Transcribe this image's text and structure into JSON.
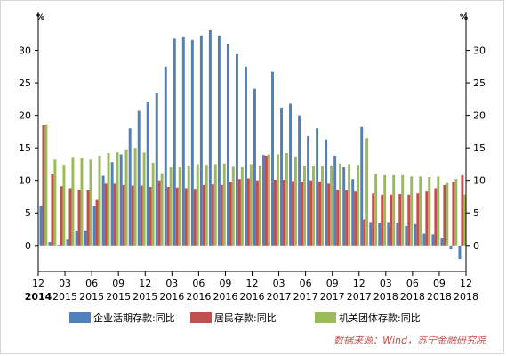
{
  "chart_data": {
    "type": "bar",
    "ylim": [
      -4,
      35
    ],
    "yticks": [
      0,
      5,
      10,
      15,
      20,
      25,
      30
    ],
    "ylabel_left": "%",
    "ylabel_right": "%",
    "grid": false,
    "legend_position": "bottom",
    "x_tick_labels": [
      {
        "month": "12",
        "year": "2014"
      },
      {
        "month": "03",
        "year": "2015"
      },
      {
        "month": "06",
        "year": "2015"
      },
      {
        "month": "09",
        "year": "2015"
      },
      {
        "month": "12",
        "year": "2015"
      },
      {
        "month": "03",
        "year": "2016"
      },
      {
        "month": "06",
        "year": "2016"
      },
      {
        "month": "09",
        "year": "2016"
      },
      {
        "month": "12",
        "year": "2016"
      },
      {
        "month": "03",
        "year": "2017"
      },
      {
        "month": "06",
        "year": "2017"
      },
      {
        "month": "09",
        "year": "2017"
      },
      {
        "month": "12",
        "year": "2017"
      },
      {
        "month": "03",
        "year": "2018"
      },
      {
        "month": "06",
        "year": "2018"
      },
      {
        "month": "09",
        "year": "2018"
      },
      {
        "month": "12",
        "year": "2018"
      }
    ],
    "series": [
      {
        "name": "企业活期存款:同比",
        "color": "#4f81bd",
        "values": [
          6.0,
          0.5,
          0.1,
          0.9,
          2.3,
          2.3,
          6.0,
          10.7,
          12.8,
          14.0,
          18.0,
          20.7,
          22.0,
          23.5,
          27.5,
          31.8,
          32.0,
          31.6,
          32.3,
          33.1,
          32.3,
          31.0,
          29.4,
          27.5,
          24.1,
          13.9,
          26.7,
          21.2,
          21.8,
          20.0,
          16.8,
          18.0,
          16.3,
          13.8,
          12.0,
          10.2,
          18.2,
          3.6,
          3.5,
          3.6,
          3.5,
          3.0,
          3.3,
          1.8,
          1.7,
          1.2,
          -0.6,
          -2.1
        ]
      },
      {
        "name": "居民存款:同比",
        "color": "#c0504d",
        "values": [
          18.5,
          11.0,
          9.1,
          8.8,
          8.6,
          8.5,
          7.0,
          9.5,
          9.5,
          9.3,
          9.2,
          9.2,
          9.0,
          10.0,
          9.0,
          8.9,
          8.8,
          8.7,
          9.3,
          9.4,
          9.3,
          9.8,
          10.2,
          10.3,
          10.0,
          13.8,
          10.1,
          10.1,
          9.9,
          9.8,
          10.0,
          9.8,
          9.5,
          8.6,
          8.5,
          8.3,
          4.0,
          8.0,
          7.8,
          7.8,
          7.9,
          7.8,
          8.0,
          8.3,
          8.8,
          9.3,
          9.8,
          10.8
        ]
      },
      {
        "name": "机关团体存款:同比",
        "color": "#9bbb59",
        "values": [
          18.6,
          13.2,
          12.4,
          13.6,
          13.4,
          13.2,
          13.8,
          14.2,
          14.3,
          14.8,
          15.0,
          14.3,
          12.7,
          11.1,
          12.0,
          12.0,
          12.3,
          12.5,
          12.4,
          12.5,
          12.6,
          12.1,
          12.0,
          12.5,
          12.3,
          14.0,
          14.0,
          14.2,
          13.7,
          12.3,
          12.2,
          12.2,
          12.3,
          12.6,
          12.5,
          12.4,
          16.5,
          11.0,
          10.8,
          10.8,
          10.8,
          10.6,
          10.6,
          10.5,
          10.6,
          9.6,
          10.2,
          7.8
        ]
      }
    ]
  },
  "source_text": "数据来源：Wind，苏宁金融研究院",
  "colors": {
    "axis": "#000000",
    "source": "#c0504d"
  }
}
